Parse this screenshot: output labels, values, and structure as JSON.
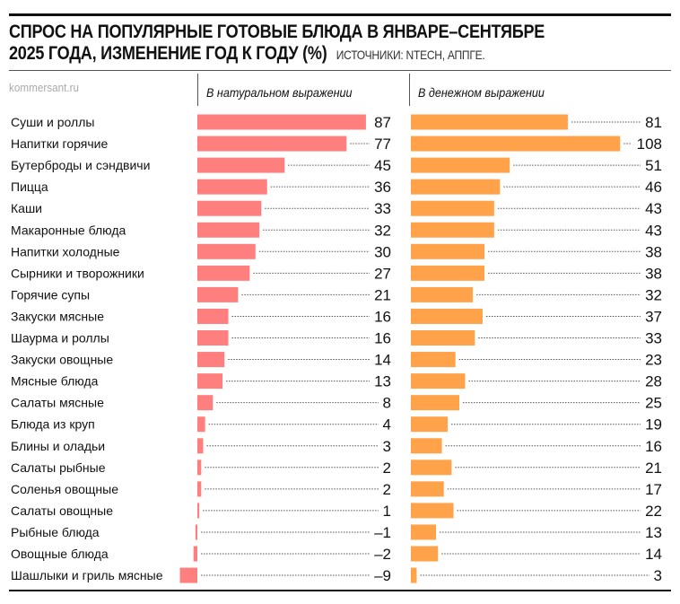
{
  "title_line1": "СПРОС НА ПОПУЛЯРНЫЕ ГОТОВЫЕ БЛЮДА В ЯНВАРЕ–СЕНТЯБРЕ",
  "title_line2": "2025 ГОДА, ИЗМЕНЕНИЕ ГОД К ГОДУ (%)",
  "sources": "ИСТОЧНИКИ: NTECH, АППГЕ.",
  "site": "kommersant.ru",
  "chart_data": {
    "type": "bar",
    "orientation": "horizontal",
    "categories": [
      "Суши и роллы",
      "Напитки горячие",
      "Бутерброды и сэндвичи",
      "Пицца",
      "Каши",
      "Макаронные блюда",
      "Напитки холодные",
      "Сырники и творожники",
      "Горячие супы",
      "Закуски мясные",
      "Шаурма и роллы",
      "Закуски овощные",
      "Мясные блюда",
      "Салаты мясные",
      "Блюда из круп",
      "Блины и оладьи",
      "Салаты рыбные",
      "Соленья овощные",
      "Салаты овощные",
      "Рыбные блюда",
      "Овощные блюда",
      "Шашлыки и гриль мясные"
    ],
    "series": [
      {
        "name": "В натуральном выражении",
        "color": "#ff7f7f",
        "values": [
          87,
          77,
          45,
          36,
          33,
          32,
          30,
          27,
          21,
          16,
          16,
          14,
          13,
          8,
          4,
          3,
          2,
          2,
          1,
          -1,
          -2,
          -9
        ]
      },
      {
        "name": "В денежном выражении",
        "color": "#ffa24a",
        "values": [
          81,
          108,
          51,
          46,
          43,
          43,
          38,
          38,
          32,
          37,
          33,
          23,
          28,
          25,
          19,
          16,
          21,
          17,
          22,
          13,
          14,
          3
        ]
      }
    ],
    "unit": "%"
  }
}
